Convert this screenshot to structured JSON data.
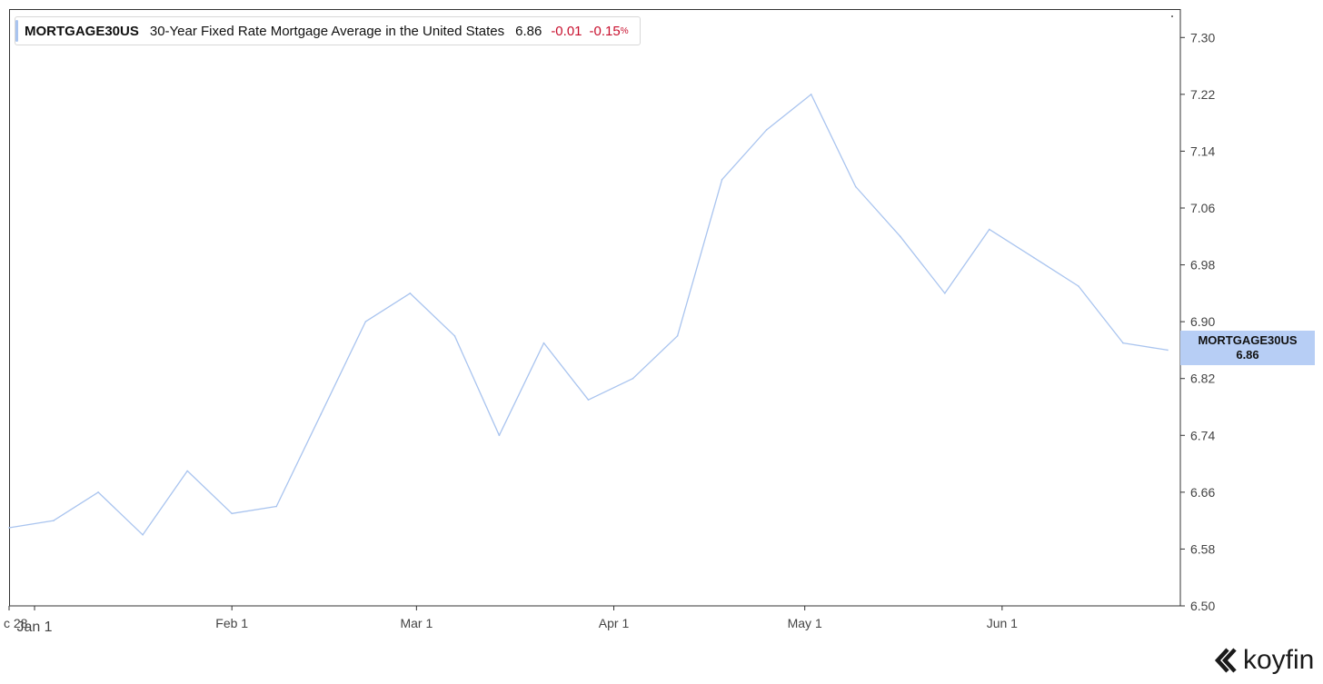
{
  "legend": {
    "ticker": "MORTGAGE30US",
    "name": "30-Year Fixed Rate Mortgage Average in the United States",
    "value": "6.86",
    "change": "-0.01",
    "change_pct": "-0.15",
    "pct_sign": "%"
  },
  "price_tag": {
    "label": "MORTGAGE30US",
    "value": "6.86"
  },
  "logo": {
    "text": "koyfin"
  },
  "colors": {
    "line": "#a9c4ef",
    "tag": "#b7cef5",
    "negative": "#c8102e",
    "axis": "#333333"
  },
  "chart_data": {
    "type": "line",
    "title": "30-Year Fixed Rate Mortgage Average in the United States",
    "x_tick_labels": [
      {
        "date": "2023-12-28",
        "label": "c 28"
      },
      {
        "date": "2024-01-01",
        "label": "Jan 1"
      },
      {
        "date": "2024-02-01",
        "label": "Feb 1"
      },
      {
        "date": "2024-03-01",
        "label": "Mar 1"
      },
      {
        "date": "2024-04-01",
        "label": "Apr 1"
      },
      {
        "date": "2024-05-01",
        "label": "May 1"
      },
      {
        "date": "2024-06-01",
        "label": "Jun 1"
      }
    ],
    "y_ticks": [
      6.5,
      6.58,
      6.66,
      6.74,
      6.82,
      6.9,
      6.98,
      7.06,
      7.14,
      7.22,
      7.3
    ],
    "ylim": [
      6.5,
      7.34
    ],
    "xlim": [
      "2023-12-28",
      "2024-06-29"
    ],
    "grid": false,
    "axis_position": "right",
    "series": [
      {
        "name": "MORTGAGE30US",
        "x": [
          "2023-12-28",
          "2024-01-04",
          "2024-01-11",
          "2024-01-18",
          "2024-01-25",
          "2024-02-01",
          "2024-02-08",
          "2024-02-15",
          "2024-02-22",
          "2024-02-29",
          "2024-03-07",
          "2024-03-14",
          "2024-03-21",
          "2024-03-28",
          "2024-04-04",
          "2024-04-11",
          "2024-04-18",
          "2024-04-25",
          "2024-05-02",
          "2024-05-09",
          "2024-05-16",
          "2024-05-23",
          "2024-05-30",
          "2024-06-06",
          "2024-06-13",
          "2024-06-20",
          "2024-06-27"
        ],
        "y": [
          6.61,
          6.62,
          6.66,
          6.6,
          6.69,
          6.63,
          6.64,
          6.77,
          6.9,
          6.94,
          6.88,
          6.74,
          6.87,
          6.79,
          6.82,
          6.88,
          7.1,
          7.17,
          7.22,
          7.09,
          7.02,
          6.94,
          7.03,
          6.99,
          6.95,
          6.87,
          6.86
        ]
      }
    ]
  }
}
